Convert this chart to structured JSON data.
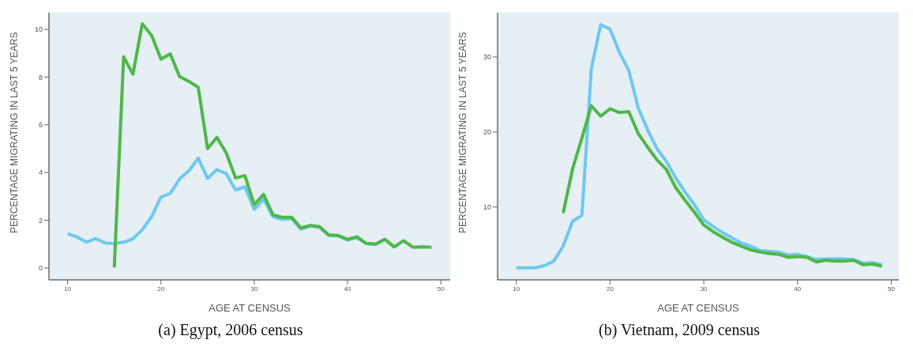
{
  "chart_data": [
    {
      "type": "line",
      "title": "(a) Egypt, 2006 census",
      "xlabel": "AGE AT CENSUS",
      "ylabel": "PERCENTAGE MIGRATING IN LAST 5 YEARS",
      "xlim": [
        8,
        51
      ],
      "xticks": [
        10,
        20,
        30,
        40,
        50
      ],
      "ylim": [
        -0.5,
        10.7
      ],
      "yticks": [
        0,
        2,
        4,
        6,
        8,
        10
      ],
      "grid": false,
      "marker": "none",
      "line_style": "solid",
      "series": [
        {
          "color": "#6dc8f0",
          "x": [
            10,
            11,
            12,
            13,
            14,
            15,
            16,
            17,
            18,
            19,
            20,
            21,
            22,
            23,
            24,
            25,
            26,
            27,
            28,
            29,
            30,
            31,
            32,
            33,
            34,
            35,
            36,
            37,
            38,
            39,
            40,
            41,
            42,
            43,
            44,
            45
          ],
          "values": [
            1.43,
            1.3,
            1.08,
            1.23,
            1.05,
            1.02,
            1.08,
            1.22,
            1.6,
            2.15,
            2.97,
            3.12,
            3.73,
            4.07,
            4.6,
            3.75,
            4.12,
            3.95,
            3.27,
            3.4,
            2.45,
            2.88,
            2.15,
            2.03,
            2.07,
            1.63,
            1.75,
            1.7,
            1.36,
            1.34,
            1.17,
            1.27,
            1.02,
            0.98,
            1.2,
            0.88
          ]
        },
        {
          "color": "#4db848",
          "x": [
            15,
            16,
            17,
            18,
            19,
            20,
            21,
            22,
            23,
            24,
            25,
            26,
            27,
            28,
            29,
            30,
            31,
            32,
            33,
            34,
            35,
            36,
            37,
            38,
            39,
            40,
            41,
            42,
            43,
            44,
            45,
            46,
            47,
            48,
            49
          ],
          "values": [
            0.02,
            8.85,
            8.12,
            10.23,
            9.75,
            8.75,
            8.97,
            8.02,
            7.82,
            7.57,
            5.0,
            5.47,
            4.82,
            3.77,
            3.87,
            2.65,
            3.08,
            2.23,
            2.12,
            2.13,
            1.67,
            1.78,
            1.73,
            1.38,
            1.36,
            1.2,
            1.3,
            1.03,
            1.0,
            1.2,
            0.88,
            1.14,
            0.87,
            0.88,
            0.87
          ]
        }
      ]
    },
    {
      "type": "line",
      "title": "(b) Vietnam, 2009 census",
      "xlabel": "AGE AT CENSUS",
      "ylabel": "PERCENTAGE MIGRATING IN LAST 5 YEARS",
      "xlim": [
        8,
        50.8
      ],
      "xticks": [
        10,
        20,
        30,
        40,
        50
      ],
      "ylim": [
        0.3,
        35.9
      ],
      "yticks": [
        10,
        20,
        30
      ],
      "grid": false,
      "marker": "none",
      "line_style": "solid",
      "series": [
        {
          "color": "#6dc8f0",
          "x": [
            10,
            11,
            12,
            13,
            14,
            15,
            16,
            17,
            18,
            19,
            20,
            21,
            22,
            23,
            24,
            25,
            26,
            27,
            28,
            29,
            30,
            31,
            32,
            33,
            34,
            35,
            36,
            37,
            38,
            39,
            40,
            41,
            42,
            43,
            44,
            45,
            46,
            47,
            48,
            49
          ],
          "values": [
            1.9,
            1.9,
            1.9,
            2.2,
            2.8,
            4.8,
            8.1,
            8.9,
            28.4,
            34.3,
            33.7,
            30.6,
            28.2,
            23.2,
            20.3,
            17.8,
            16.1,
            13.9,
            12.0,
            10.3,
            8.3,
            7.4,
            6.6,
            5.9,
            5.2,
            4.8,
            4.2,
            4.1,
            4.0,
            3.6,
            3.7,
            3.4,
            3.0,
            3.1,
            3.1,
            3.1,
            3.0,
            2.5,
            2.6,
            2.3
          ]
        },
        {
          "color": "#4db848",
          "x": [
            15,
            16,
            17,
            18,
            19,
            20,
            21,
            22,
            23,
            24,
            25,
            26,
            27,
            28,
            29,
            30,
            31,
            32,
            33,
            34,
            35,
            36,
            37,
            38,
            39,
            40,
            41,
            42,
            43,
            44,
            45,
            46,
            47,
            48,
            49
          ],
          "values": [
            9.2,
            15.1,
            19.2,
            23.5,
            22.1,
            23.1,
            22.6,
            22.7,
            19.8,
            18.0,
            16.3,
            15.0,
            12.6,
            10.9,
            9.3,
            7.6,
            6.7,
            6.0,
            5.3,
            4.8,
            4.3,
            4.0,
            3.8,
            3.7,
            3.3,
            3.4,
            3.3,
            2.7,
            2.9,
            2.8,
            2.8,
            2.9,
            2.3,
            2.4,
            2.1
          ]
        }
      ]
    }
  ]
}
